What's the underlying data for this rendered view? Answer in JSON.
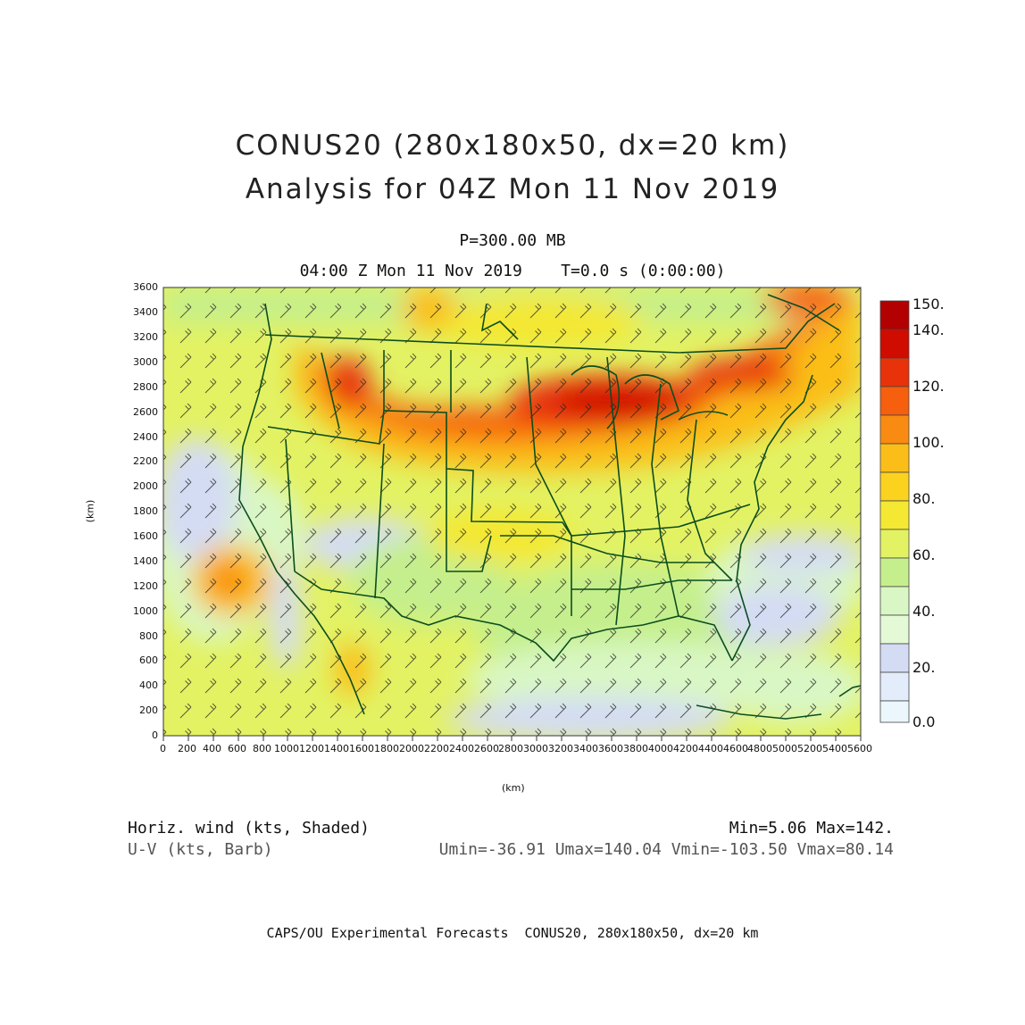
{
  "title_line1": "CONUS20 (280x180x50, dx=20 km)",
  "title_line2": "Analysis for 04Z Mon 11 Nov 2019",
  "level": "P=300.00 MB",
  "time_line": "04:00 Z Mon 11 Nov 2019    T=0.0 s (0:00:00)",
  "x_unit": "(km)",
  "y_unit": "(km)",
  "x_ticks": [
    "0",
    "200",
    "400",
    "600",
    "800",
    "1000",
    "1200",
    "1400",
    "1600",
    "1800",
    "2000",
    "2200",
    "2400",
    "2600",
    "2800",
    "3000",
    "3200",
    "3400",
    "3600",
    "3800",
    "4000",
    "4200",
    "4400",
    "4600",
    "4800",
    "5000",
    "5200",
    "5400",
    "5600"
  ],
  "y_ticks": [
    "0",
    "200",
    "400",
    "600",
    "800",
    "1000",
    "1200",
    "1400",
    "1600",
    "1800",
    "2000",
    "2200",
    "2400",
    "2600",
    "2800",
    "3000",
    "3200",
    "3400",
    "3600"
  ],
  "colorbar": {
    "labels": [
      "150.",
      "140.",
      "120.",
      "100.",
      "80.",
      "60.",
      "40.",
      "20.",
      "0.0"
    ],
    "colors": [
      "#b30000",
      "#d00b00",
      "#e8320a",
      "#f55f0d",
      "#f98b12",
      "#fbbe19",
      "#f4e833",
      "#e3f263",
      "#c5ef8c",
      "#d9f7c4",
      "#d4dcf4",
      "#e2ecfa",
      "#ebf7fc"
    ]
  },
  "legend": {
    "field1": "Horiz. wind (kts, Shaded)",
    "field2": "U-V (kts, Barb)",
    "minmax": "Min=5.06 Max=142.",
    "components": "Umin=-36.91 Umax=140.04 Vmin=-103.50 Vmax=80.14"
  },
  "footer": "CAPS/OU Experimental Forecasts  CONUS20, 280x180x50, dx=20 km",
  "map": {
    "x_range_km": [
      0,
      5600
    ],
    "y_range_km": [
      0,
      3600
    ],
    "border_color": "#0b4d1e",
    "jet_core": "Great Lakes",
    "max_wind_kts": 142
  }
}
